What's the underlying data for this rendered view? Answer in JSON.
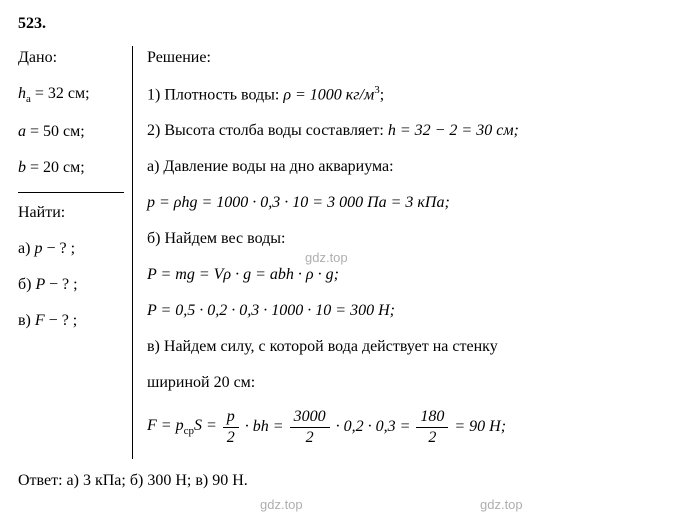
{
  "problem_number": "523.",
  "given": {
    "header": "Дано:",
    "items": [
      {
        "var": "h",
        "sub": "а",
        "eq": "= 32 см;"
      },
      {
        "var": "a",
        "sub": "",
        "eq": "= 50 см;"
      },
      {
        "var": "b",
        "sub": "",
        "eq": "= 20 см;"
      }
    ]
  },
  "find": {
    "header": "Найти:",
    "items": [
      {
        "label": "а)",
        "var": "p",
        "q": "− ? ;"
      },
      {
        "label": "б)",
        "var": "P",
        "q": "− ? ;"
      },
      {
        "label": "в)",
        "var": "F",
        "q": "− ? ;"
      }
    ]
  },
  "solution": {
    "header": "Решение:",
    "line1_pre": "1) Плотность воды:  ",
    "line1_expr": "ρ = 1000 кг/м",
    "line1_sup": "3",
    "line1_end": ";",
    "line2_pre": "2) Высота столба воды составляет:  ",
    "line2_expr": "h = 32 − 2 = 30 см;",
    "line_a": "а) Давление воды на дно аквариума:",
    "line_a_expr": "p = ρhg = 1000 · 0,3 · 10 = 3 000 Па = 3 кПа;",
    "line_b": "б) Найдем вес воды:",
    "line_b_expr1": "P = mg = Vρ · g = abh · ρ · g;",
    "line_b_expr2": "P = 0,5 · 0,2 · 0,3 · 1000 · 10 = 300 Н;",
    "line_c1": "в) Найдем силу, с которой вода действует на стенку",
    "line_c2": "шириной 20 см:",
    "frac": {
      "lhs": "F = p",
      "lhs_sub": "ср",
      "lhs2": "S =",
      "f1_num": "p",
      "f1_den": "2",
      "mid1": "· bh =",
      "f2_num": "3000",
      "f2_den": "2",
      "mid2": "· 0,2 · 0,3 =",
      "f3_num": "180",
      "f3_den": "2",
      "end": "= 90 Н;"
    }
  },
  "answer": "Ответ:  а) 3 кПа;  б) 300 Н;  в) 90 Н.",
  "watermark": "gdz.top",
  "colors": {
    "text": "#000000",
    "bg": "#ffffff",
    "watermark": "rgba(120,120,120,0.6)"
  }
}
